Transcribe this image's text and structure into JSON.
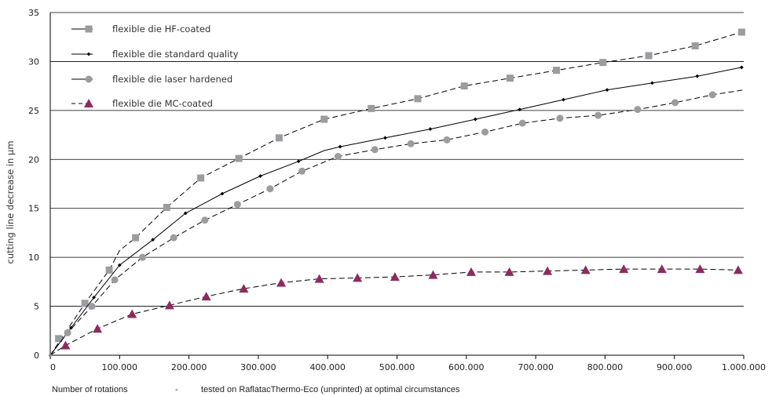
{
  "chart_data": {
    "type": "line",
    "xlabel": "Number of rotations",
    "ylabel": "cutting line decrease in µm",
    "footer": {
      "label": "Number of rotations",
      "separator": "-",
      "note": "tested on RaflatacThermo-Eco (unprinted) at optimal circumstances"
    },
    "xlim": [
      0,
      1000000
    ],
    "ylim": [
      0,
      35
    ],
    "x_tick_labels": [
      "0",
      "100.000",
      "200.000",
      "300.000",
      "400.000",
      "500.000",
      "600.000",
      "700.000",
      "800.000",
      "900.000",
      "1.000.000"
    ],
    "y_tick_labels": [
      "0",
      "5",
      "10",
      "15",
      "20",
      "25",
      "30",
      "35"
    ],
    "grid": "horizontal",
    "legend_position": "top-left",
    "series": [
      {
        "name": "flexible die HF-coated",
        "line": "dashed",
        "marker": "square",
        "color": "#9a9ca0",
        "line_color": "#000000",
        "marker_x": [
          0,
          12000,
          50000,
          85000,
          123000,
          168000,
          217000,
          272000,
          330000,
          395000,
          463000,
          530000,
          597000,
          663000,
          730000,
          797000,
          863000,
          930000,
          997000
        ],
        "marker_y": [
          0,
          1.7,
          5.3,
          8.7,
          12.0,
          15.1,
          18.1,
          20.1,
          22.2,
          24.1,
          25.2,
          26.2,
          27.5,
          28.3,
          29.1,
          29.9,
          30.6,
          31.6,
          33.0
        ],
        "line_x": [
          0,
          50000,
          85000,
          100000,
          123000,
          168000,
          217000,
          272000,
          330000,
          395000,
          463000,
          530000,
          597000,
          663000,
          730000,
          797000,
          863000,
          930000,
          997000
        ],
        "line_y": [
          0,
          5.3,
          8.7,
          10.7,
          12.0,
          15.1,
          18.1,
          20.1,
          22.2,
          24.1,
          25.2,
          26.2,
          27.5,
          28.3,
          29.1,
          29.9,
          30.6,
          31.6,
          33.0
        ]
      },
      {
        "name": "flexible die standard quality",
        "line": "solid",
        "marker": "small-diamond",
        "color": "#000000",
        "line_color": "#000000",
        "marker_x": [
          0,
          30000,
          63000,
          100000,
          148000,
          195000,
          248000,
          303000,
          358000,
          418000,
          483000,
          548000,
          613000,
          677000,
          740000,
          803000,
          868000,
          933000,
          997000
        ],
        "marker_y": [
          0,
          2.8,
          5.9,
          9.2,
          11.8,
          14.5,
          16.5,
          18.3,
          19.8,
          21.3,
          22.2,
          23.1,
          24.1,
          25.1,
          26.1,
          27.1,
          27.8,
          28.5,
          29.4
        ],
        "line_x": [
          0,
          30000,
          63000,
          100000,
          148000,
          195000,
          248000,
          303000,
          358000,
          395000,
          418000,
          483000,
          548000,
          613000,
          677000,
          740000,
          803000,
          868000,
          933000,
          997000
        ],
        "line_y": [
          0,
          2.8,
          5.9,
          9.2,
          11.8,
          14.5,
          16.5,
          18.3,
          19.8,
          20.9,
          21.3,
          22.2,
          23.1,
          24.1,
          25.1,
          26.1,
          27.1,
          27.8,
          28.5,
          29.4
        ]
      },
      {
        "name": "flexible die laser hardened",
        "line": "dashed",
        "marker": "circle",
        "color": "#9a9ca0",
        "line_color": "#000000",
        "marker_x": [
          0,
          25000,
          60000,
          93000,
          133000,
          178000,
          223000,
          270000,
          317000,
          363000,
          415000,
          468000,
          520000,
          572000,
          627000,
          681000,
          735000,
          790000,
          847000,
          901000,
          955000
        ],
        "marker_y": [
          0,
          2.3,
          5.0,
          7.7,
          10.0,
          12.0,
          13.8,
          15.4,
          17.0,
          18.8,
          20.3,
          21.0,
          21.6,
          22.0,
          22.8,
          23.7,
          24.2,
          24.5,
          25.1,
          25.8,
          26.6
        ],
        "line_x": [
          0,
          25000,
          60000,
          93000,
          133000,
          178000,
          223000,
          270000,
          317000,
          363000,
          415000,
          468000,
          520000,
          572000,
          627000,
          681000,
          735000,
          790000,
          847000,
          901000,
          955000,
          1000000
        ],
        "line_y": [
          0,
          2.3,
          5.0,
          7.7,
          10.0,
          12.0,
          13.8,
          15.4,
          17.0,
          18.8,
          20.3,
          21.0,
          21.6,
          22.0,
          22.8,
          23.7,
          24.2,
          24.5,
          25.1,
          25.8,
          26.6,
          27.1
        ]
      },
      {
        "name": "flexible die MC-coated",
        "line": "dashed",
        "marker": "triangle",
        "color": "#8e2a5e",
        "line_color": "#000000",
        "marker_x": [
          0,
          22000,
          68000,
          118000,
          172000,
          225000,
          279000,
          333000,
          388000,
          443000,
          497000,
          552000,
          607000,
          662000,
          717000,
          772000,
          827000,
          882000,
          937000,
          992000
        ],
        "marker_y": [
          0,
          1.0,
          2.7,
          4.2,
          5.1,
          6.0,
          6.8,
          7.4,
          7.8,
          7.9,
          8.0,
          8.2,
          8.5,
          8.5,
          8.6,
          8.7,
          8.8,
          8.8,
          8.8,
          8.7
        ],
        "line_x": [
          0,
          22000,
          68000,
          118000,
          172000,
          225000,
          279000,
          333000,
          388000,
          443000,
          497000,
          552000,
          607000,
          662000,
          717000,
          772000,
          827000,
          882000,
          937000,
          992000
        ],
        "line_y": [
          0,
          1.0,
          2.7,
          4.2,
          5.1,
          6.0,
          6.8,
          7.4,
          7.8,
          7.9,
          8.0,
          8.2,
          8.5,
          8.5,
          8.6,
          8.7,
          8.8,
          8.8,
          8.8,
          8.7
        ]
      }
    ]
  }
}
